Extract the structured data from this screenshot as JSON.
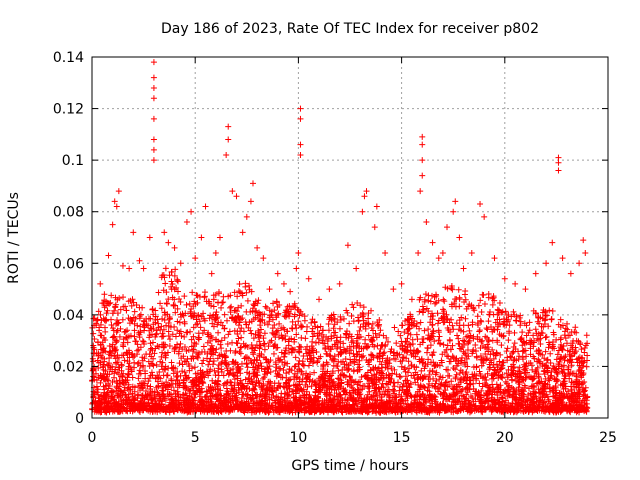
{
  "chart_data": {
    "type": "scatter",
    "title": "Day 186 of 2023, Rate Of TEC Index for receiver p802",
    "xlabel": "GPS time / hours",
    "ylabel": "ROTI / TECUs",
    "xlim": [
      0,
      25
    ],
    "ylim": [
      0,
      0.14
    ],
    "xticks": [
      0,
      5,
      10,
      15,
      20,
      25
    ],
    "xtick_labels": [
      "0",
      "5",
      "10",
      "15",
      "20",
      "25"
    ],
    "yticks": [
      0,
      0.02,
      0.04,
      0.06,
      0.08,
      0.1,
      0.12,
      0.14
    ],
    "ytick_labels": [
      "0",
      "0.02",
      "0.04",
      "0.06",
      "0.08",
      "0.1",
      "0.12",
      "0.14"
    ],
    "grid": true,
    "marker": "+",
    "marker_color": "#ff0000",
    "series": [
      {
        "values": [
          [
            0.2,
            0.036
          ],
          [
            0.4,
            0.052
          ],
          [
            0.6,
            0.048
          ],
          [
            0.8,
            0.063
          ],
          [
            1.0,
            0.075
          ],
          [
            1.1,
            0.084
          ],
          [
            1.2,
            0.082
          ],
          [
            1.3,
            0.088
          ],
          [
            1.5,
            0.059
          ],
          [
            1.8,
            0.058
          ],
          [
            2.0,
            0.072
          ],
          [
            2.3,
            0.061
          ],
          [
            2.5,
            0.058
          ],
          [
            2.8,
            0.07
          ],
          [
            3.0,
            0.1
          ],
          [
            3.0,
            0.104
          ],
          [
            3.0,
            0.108
          ],
          [
            3.0,
            0.116
          ],
          [
            3.0,
            0.124
          ],
          [
            3.0,
            0.128
          ],
          [
            3.0,
            0.132
          ],
          [
            3.0,
            0.138
          ],
          [
            3.5,
            0.072
          ],
          [
            3.7,
            0.068
          ],
          [
            4.0,
            0.066
          ],
          [
            4.3,
            0.06
          ],
          [
            4.6,
            0.076
          ],
          [
            4.8,
            0.08
          ],
          [
            5.0,
            0.062
          ],
          [
            5.3,
            0.07
          ],
          [
            5.5,
            0.082
          ],
          [
            5.8,
            0.056
          ],
          [
            6.0,
            0.064
          ],
          [
            6.2,
            0.07
          ],
          [
            6.5,
            0.102
          ],
          [
            6.6,
            0.108
          ],
          [
            6.6,
            0.113
          ],
          [
            6.8,
            0.088
          ],
          [
            7.0,
            0.086
          ],
          [
            7.3,
            0.072
          ],
          [
            7.5,
            0.078
          ],
          [
            7.7,
            0.084
          ],
          [
            7.8,
            0.091
          ],
          [
            8.0,
            0.066
          ],
          [
            8.3,
            0.062
          ],
          [
            8.6,
            0.05
          ],
          [
            9.0,
            0.056
          ],
          [
            9.3,
            0.052
          ],
          [
            9.6,
            0.049
          ],
          [
            9.9,
            0.058
          ],
          [
            10.0,
            0.064
          ],
          [
            10.1,
            0.102
          ],
          [
            10.1,
            0.106
          ],
          [
            10.1,
            0.116
          ],
          [
            10.1,
            0.12
          ],
          [
            10.5,
            0.054
          ],
          [
            11.0,
            0.046
          ],
          [
            11.5,
            0.05
          ],
          [
            12.0,
            0.052
          ],
          [
            12.4,
            0.067
          ],
          [
            12.8,
            0.058
          ],
          [
            13.1,
            0.08
          ],
          [
            13.2,
            0.086
          ],
          [
            13.3,
            0.088
          ],
          [
            13.7,
            0.074
          ],
          [
            13.8,
            0.082
          ],
          [
            14.2,
            0.064
          ],
          [
            14.6,
            0.05
          ],
          [
            15.0,
            0.052
          ],
          [
            15.5,
            0.046
          ],
          [
            15.8,
            0.064
          ],
          [
            15.9,
            0.088
          ],
          [
            16.0,
            0.094
          ],
          [
            16.0,
            0.1
          ],
          [
            16.0,
            0.106
          ],
          [
            16.0,
            0.109
          ],
          [
            16.2,
            0.076
          ],
          [
            16.5,
            0.068
          ],
          [
            16.8,
            0.062
          ],
          [
            17.0,
            0.064
          ],
          [
            17.2,
            0.074
          ],
          [
            17.5,
            0.08
          ],
          [
            17.6,
            0.084
          ],
          [
            17.8,
            0.07
          ],
          [
            18.0,
            0.058
          ],
          [
            18.4,
            0.064
          ],
          [
            18.8,
            0.083
          ],
          [
            19.0,
            0.078
          ],
          [
            19.5,
            0.062
          ],
          [
            20.0,
            0.054
          ],
          [
            20.5,
            0.052
          ],
          [
            21.0,
            0.05
          ],
          [
            21.5,
            0.056
          ],
          [
            22.0,
            0.06
          ],
          [
            22.3,
            0.068
          ],
          [
            22.6,
            0.096
          ],
          [
            22.6,
            0.099
          ],
          [
            22.6,
            0.101
          ],
          [
            22.8,
            0.062
          ],
          [
            23.2,
            0.056
          ],
          [
            23.6,
            0.06
          ],
          [
            23.8,
            0.069
          ],
          [
            23.9,
            0.064
          ]
        ]
      }
    ],
    "density": {
      "note": "dense cloud of + markers across 0-24 h",
      "envelope": [
        [
          0.0,
          0.04
        ],
        [
          0.5,
          0.046
        ],
        [
          1.0,
          0.05
        ],
        [
          1.5,
          0.048
        ],
        [
          2.0,
          0.046
        ],
        [
          2.5,
          0.044
        ],
        [
          3.0,
          0.042
        ],
        [
          3.5,
          0.06
        ],
        [
          4.0,
          0.058
        ],
        [
          4.5,
          0.052
        ],
        [
          5.0,
          0.048
        ],
        [
          5.5,
          0.05
        ],
        [
          6.0,
          0.048
        ],
        [
          6.5,
          0.052
        ],
        [
          7.0,
          0.05
        ],
        [
          7.5,
          0.054
        ],
        [
          8.0,
          0.046
        ],
        [
          8.5,
          0.044
        ],
        [
          9.0,
          0.046
        ],
        [
          9.5,
          0.044
        ],
        [
          10.0,
          0.046
        ],
        [
          10.5,
          0.04
        ],
        [
          11.0,
          0.036
        ],
        [
          11.5,
          0.04
        ],
        [
          12.0,
          0.042
        ],
        [
          12.5,
          0.044
        ],
        [
          13.0,
          0.046
        ],
        [
          13.5,
          0.042
        ],
        [
          14.0,
          0.04
        ],
        [
          14.5,
          0.036
        ],
        [
          15.0,
          0.038
        ],
        [
          15.5,
          0.04
        ],
        [
          16.0,
          0.05
        ],
        [
          16.5,
          0.048
        ],
        [
          17.0,
          0.052
        ],
        [
          17.5,
          0.054
        ],
        [
          18.0,
          0.05
        ],
        [
          18.5,
          0.048
        ],
        [
          19.0,
          0.05
        ],
        [
          19.5,
          0.048
        ],
        [
          20.0,
          0.042
        ],
        [
          20.5,
          0.04
        ],
        [
          21.0,
          0.04
        ],
        [
          21.5,
          0.042
        ],
        [
          22.0,
          0.044
        ],
        [
          22.5,
          0.04
        ],
        [
          23.0,
          0.036
        ],
        [
          23.5,
          0.034
        ],
        [
          24.0,
          0.032
        ]
      ],
      "floor": 0.003
    }
  }
}
